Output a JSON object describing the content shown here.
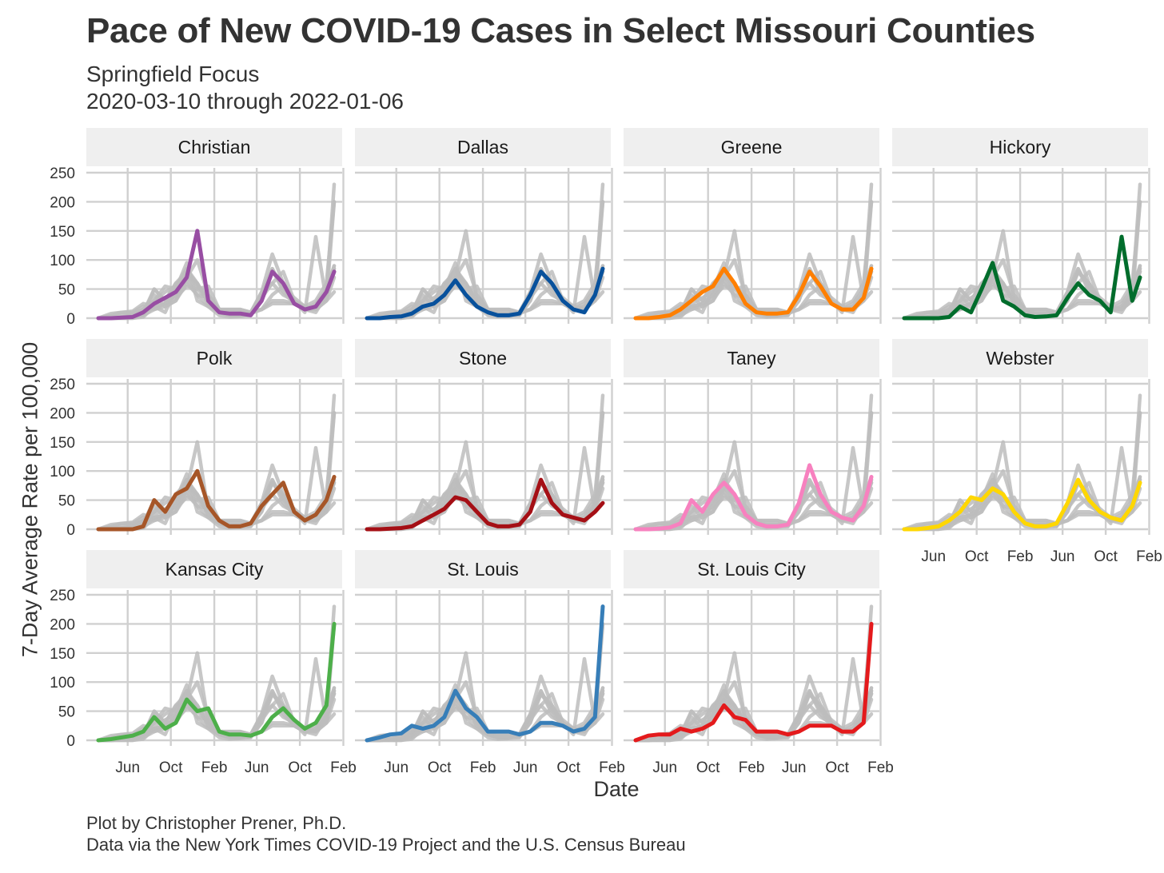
{
  "header": {
    "title": "Pace of New COVID-19 Cases in Select Missouri Counties",
    "subtitle_line1": "Springfield Focus",
    "subtitle_line2": "2020-03-10 through 2022-01-06"
  },
  "caption": {
    "line1": "Plot by Christopher Prener, Ph.D.",
    "line2": "Data via the New York Times COVID-19 Project and the U.S. Census Bureau"
  },
  "chart_data": {
    "type": "line",
    "title": "Pace of New COVID-19 Cases in Select Missouri Counties",
    "subtitle": "Springfield Focus\n2020-03-10 through 2022-01-06",
    "xlabel": "Date",
    "ylabel": "7-Day Average Rate per 100,000",
    "ylim": [
      0,
      250
    ],
    "y_ticks": [
      0,
      50,
      100,
      150,
      200,
      250
    ],
    "x_ticks": [
      "Jun",
      "Oct",
      "Feb",
      "Jun",
      "Oct",
      "Feb"
    ],
    "x_tick_dates": [
      "2020-06-01",
      "2020-10-01",
      "2021-02-01",
      "2021-06-01",
      "2021-10-01",
      "2022-02-01"
    ],
    "x_range": [
      "2020-03-10",
      "2022-01-06"
    ],
    "grid": true,
    "legend": "none",
    "facet_background": "#efefef",
    "background_series_color": "#bdbdbd",
    "x": [
      "2020-03-10",
      "2020-04-15",
      "2020-05-15",
      "2020-06-15",
      "2020-07-15",
      "2020-08-15",
      "2020-09-15",
      "2020-10-15",
      "2020-11-15",
      "2020-12-15",
      "2021-01-15",
      "2021-02-15",
      "2021-03-15",
      "2021-04-15",
      "2021-05-15",
      "2021-06-15",
      "2021-07-15",
      "2021-08-15",
      "2021-09-15",
      "2021-10-15",
      "2021-11-15",
      "2021-12-15",
      "2022-01-06"
    ],
    "panels": [
      {
        "name": "Christian",
        "color": "#984ea3",
        "values": [
          0,
          0,
          1,
          2,
          10,
          25,
          35,
          45,
          70,
          150,
          30,
          10,
          8,
          8,
          5,
          30,
          80,
          60,
          25,
          15,
          20,
          45,
          80
        ]
      },
      {
        "name": "Dallas",
        "color": "#08519c",
        "values": [
          0,
          0,
          2,
          3,
          8,
          20,
          25,
          40,
          65,
          40,
          20,
          10,
          5,
          5,
          8,
          40,
          80,
          60,
          30,
          15,
          10,
          40,
          85
        ]
      },
      {
        "name": "Greene",
        "color": "#ff7f00",
        "values": [
          0,
          0,
          2,
          5,
          15,
          30,
          45,
          55,
          85,
          60,
          25,
          10,
          8,
          8,
          10,
          40,
          80,
          55,
          25,
          15,
          15,
          35,
          85
        ]
      },
      {
        "name": "Hickory",
        "color": "#006d2c",
        "values": [
          0,
          0,
          0,
          0,
          2,
          20,
          10,
          50,
          95,
          30,
          20,
          5,
          2,
          3,
          5,
          35,
          60,
          40,
          30,
          10,
          140,
          30,
          70
        ]
      },
      {
        "name": "Polk",
        "color": "#a65628",
        "values": [
          0,
          0,
          0,
          0,
          5,
          50,
          30,
          60,
          70,
          100,
          40,
          15,
          5,
          5,
          10,
          40,
          60,
          80,
          30,
          15,
          25,
          50,
          90
        ]
      },
      {
        "name": "Stone",
        "color": "#a50f15",
        "values": [
          0,
          0,
          1,
          2,
          5,
          15,
          25,
          35,
          55,
          50,
          30,
          10,
          5,
          5,
          8,
          30,
          85,
          45,
          25,
          20,
          15,
          30,
          45
        ]
      },
      {
        "name": "Taney",
        "color": "#f781bf",
        "values": [
          0,
          0,
          1,
          3,
          10,
          50,
          30,
          60,
          80,
          60,
          25,
          10,
          5,
          5,
          8,
          45,
          110,
          60,
          30,
          20,
          15,
          40,
          90
        ]
      },
      {
        "name": "Webster",
        "color": "#ffd700",
        "values": [
          0,
          0,
          2,
          5,
          15,
          30,
          55,
          50,
          70,
          60,
          30,
          10,
          5,
          5,
          10,
          45,
          85,
          50,
          30,
          20,
          15,
          40,
          80
        ]
      },
      {
        "name": "Kansas City",
        "color": "#4daf4a",
        "values": [
          0,
          2,
          5,
          8,
          15,
          40,
          20,
          30,
          70,
          50,
          55,
          15,
          10,
          10,
          8,
          15,
          40,
          55,
          35,
          20,
          30,
          60,
          200
        ]
      },
      {
        "name": "St. Louis",
        "color": "#377eb8",
        "values": [
          0,
          5,
          10,
          12,
          25,
          20,
          25,
          40,
          85,
          55,
          40,
          15,
          15,
          15,
          10,
          15,
          30,
          30,
          25,
          15,
          20,
          40,
          230
        ]
      },
      {
        "name": "St. Louis City",
        "color": "#e41a1c",
        "values": [
          0,
          8,
          10,
          10,
          20,
          15,
          20,
          30,
          60,
          40,
          35,
          15,
          15,
          15,
          10,
          15,
          25,
          25,
          25,
          15,
          15,
          30,
          200
        ]
      }
    ]
  }
}
